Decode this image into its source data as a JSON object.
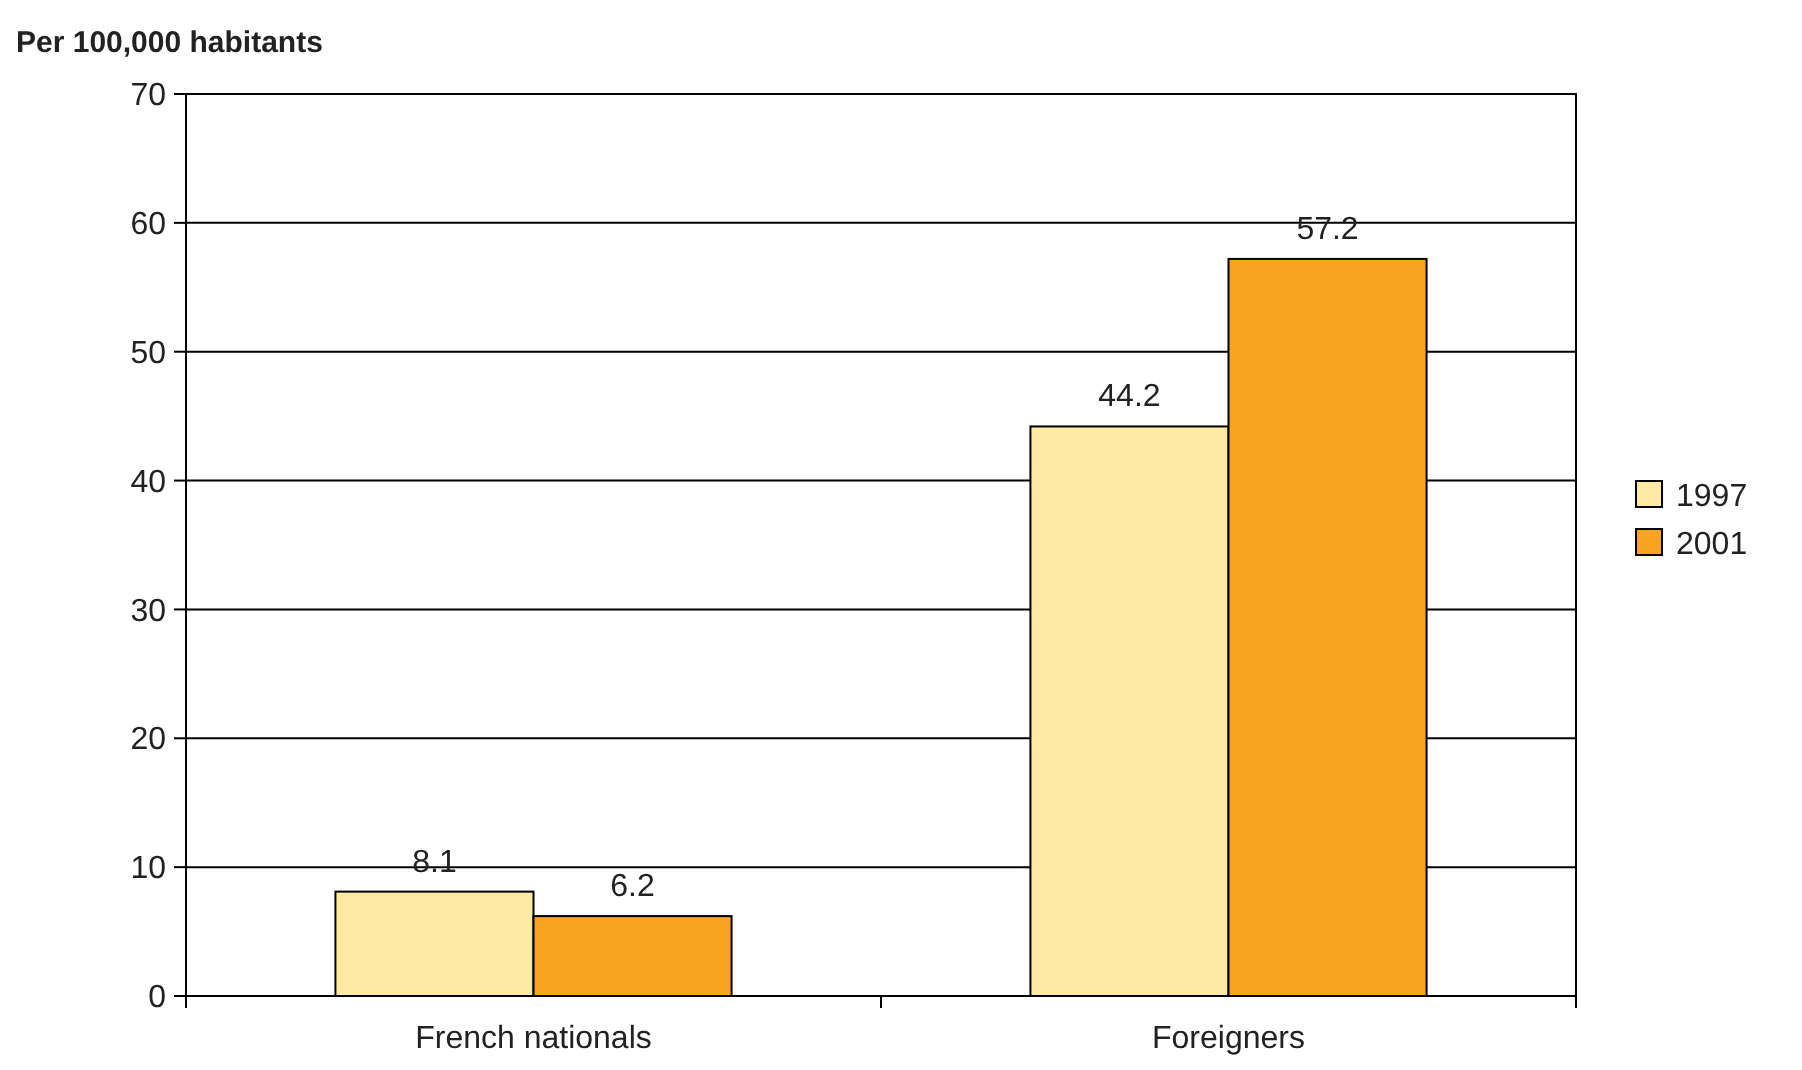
{
  "chart_data": {
    "type": "bar",
    "ylabel": "Per 100,000 habitants",
    "categories": [
      "French nationals",
      "Foreigners"
    ],
    "series": [
      {
        "name": "1997",
        "color": "#feeaa2",
        "values": [
          8.1,
          44.2
        ]
      },
      {
        "name": "2001",
        "color": "#f7a51e",
        "values": [
          6.2,
          57.2
        ]
      }
    ],
    "ylim": [
      0,
      70
    ],
    "yticks": [
      0,
      10,
      20,
      30,
      40,
      50,
      60,
      70
    ],
    "grid": "y",
    "legend": "right",
    "data_labels": true
  }
}
